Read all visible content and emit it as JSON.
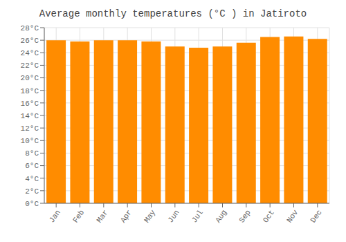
{
  "chart_data": {
    "type": "bar",
    "title": "Average monthly temperatures (°C ) in Jatiroto",
    "categories": [
      "Jan",
      "Feb",
      "Mar",
      "Apr",
      "May",
      "Jun",
      "Jul",
      "Aug",
      "Sep",
      "Oct",
      "Nov",
      "Dec"
    ],
    "values": [
      26.0,
      25.8,
      26.0,
      26.0,
      25.8,
      25.0,
      24.8,
      25.0,
      25.6,
      26.5,
      26.6,
      26.2
    ],
    "color": "#FF8C00",
    "ylim": [
      0,
      28
    ],
    "yticks": [
      {
        "value": 0,
        "label": "0°C"
      },
      {
        "value": 2,
        "label": "2°C"
      },
      {
        "value": 4,
        "label": "4°C"
      },
      {
        "value": 6,
        "label": "6°C"
      },
      {
        "value": 8,
        "label": "8°C"
      },
      {
        "value": 10,
        "label": "10°C"
      },
      {
        "value": 12,
        "label": "12°C"
      },
      {
        "value": 14,
        "label": "14°C"
      },
      {
        "value": 16,
        "label": "16°C"
      },
      {
        "value": 18,
        "label": "18°C"
      },
      {
        "value": 20,
        "label": "20°C"
      },
      {
        "value": 22,
        "label": "22°C"
      },
      {
        "value": 24,
        "label": "24°C"
      },
      {
        "value": 26,
        "label": "26°C"
      },
      {
        "value": 28,
        "label": "28°C"
      }
    ],
    "grid": true
  }
}
